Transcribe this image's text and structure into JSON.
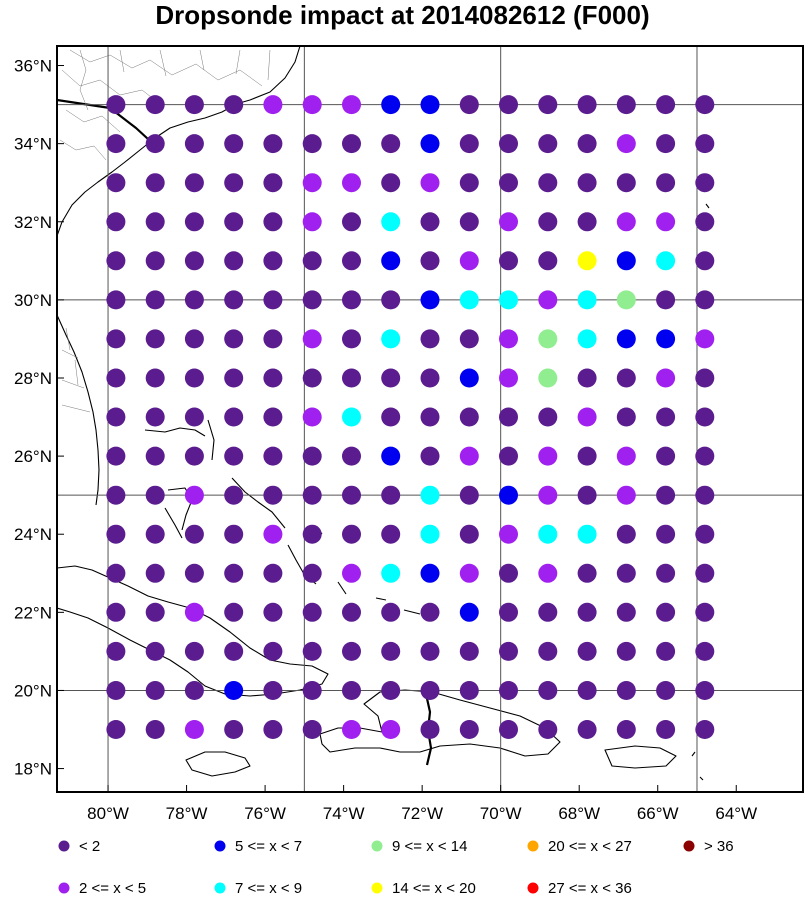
{
  "title": "Dropsonde impact at 2014082612 (F000)",
  "map": {
    "lon_range": [
      -81.3,
      -62.3
    ],
    "lat_range": [
      17.4,
      36.5
    ],
    "projection": "cylindrical equidistant",
    "land_outline_color": "#000000",
    "county_line_color": "#888888",
    "ocean_color": "#ffffff"
  },
  "lat_ticks": [
    {
      "value": 18,
      "label": "18°N"
    },
    {
      "value": 20,
      "label": "20°N"
    },
    {
      "value": 22,
      "label": "22°N"
    },
    {
      "value": 24,
      "label": "24°N"
    },
    {
      "value": 26,
      "label": "26°N"
    },
    {
      "value": 28,
      "label": "28°N"
    },
    {
      "value": 30,
      "label": "30°N"
    },
    {
      "value": 32,
      "label": "32°N"
    },
    {
      "value": 34,
      "label": "34°N"
    },
    {
      "value": 36,
      "label": "36°N"
    }
  ],
  "lon_ticks": [
    {
      "value": -80,
      "label": "80°W"
    },
    {
      "value": -78,
      "label": "78°W"
    },
    {
      "value": -76,
      "label": "76°W"
    },
    {
      "value": -74,
      "label": "74°W"
    },
    {
      "value": -72,
      "label": "72°W"
    },
    {
      "value": -70,
      "label": "70°W"
    },
    {
      "value": -68,
      "label": "68°W"
    },
    {
      "value": -66,
      "label": "66°W"
    },
    {
      "value": -64,
      "label": "64°W"
    }
  ],
  "grid": {
    "lons": [
      -80,
      -75,
      -70,
      -65
    ],
    "lats": [
      20,
      25,
      30,
      35
    ]
  },
  "categories": [
    {
      "key": "0",
      "label": "<  2",
      "color": "#5a1c8e"
    },
    {
      "key": "1",
      "label": "2 <= x <  5",
      "color": "#a020f0"
    },
    {
      "key": "2",
      "label": "5 <= x <  7",
      "color": "#0000f0"
    },
    {
      "key": "3",
      "label": "7 <= x <  9",
      "color": "#00ffff"
    },
    {
      "key": "4",
      "label": "9 <= x < 14",
      "color": "#90ee90"
    },
    {
      "key": "5",
      "label": "14 <= x < 20",
      "color": "#ffff00"
    },
    {
      "key": "6",
      "label": "20 <= x < 27",
      "color": "#ffa500"
    },
    {
      "key": "7",
      "label": "27 <= x < 36",
      "color": "#ff0000"
    },
    {
      "key": "8",
      "label": "> 36",
      "color": "#8b0000"
    }
  ],
  "points": {
    "lon_start": -79.8,
    "lon_step": 1.0,
    "lat_start": 35.0,
    "lat_step": -1.0,
    "rows": [
      "0000111220000000",
      "0000000020000100",
      "0000011010000000",
      "0000010300100110",
      "0000000201005230",
      "0000000023313400",
      "0000010300143221",
      "0000000002140010",
      "0000013000001000",
      "0000000201010100",
      "0010000030210100",
      "0000100030133000",
      "0000001321010000",
      "0010000002000000",
      "0000000000000000",
      "0002000000000000",
      "0010001100000000"
    ]
  }
}
